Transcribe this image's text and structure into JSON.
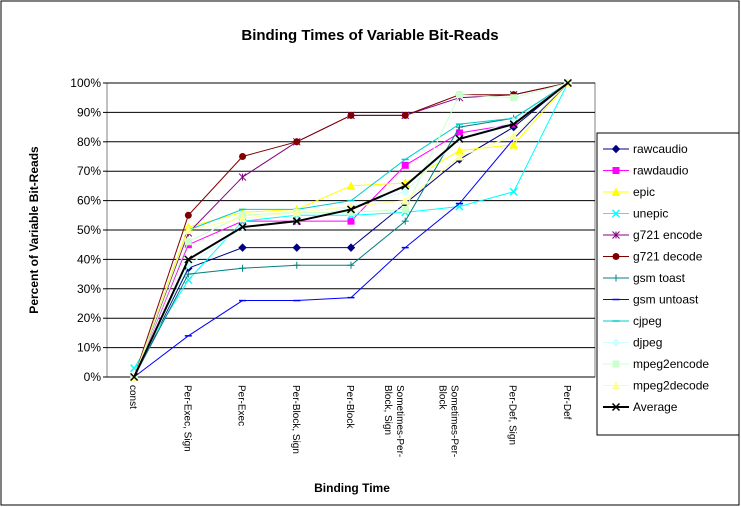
{
  "chart_data": {
    "type": "line",
    "title": "Binding Times of Variable Bit-Reads",
    "x_label": "Binding Time",
    "y_label": "Percent of Variable Bit-Reads",
    "categories": [
      "const",
      "Per-Exec, Sign",
      "Per-Exec",
      "Per-Block, Sign",
      "Per-Block",
      "Sometimes-Per-Block, Sign",
      "Sometimes-Per-Block",
      "Per-Def, Sign",
      "Per-Def"
    ],
    "ylim": [
      0,
      100
    ],
    "yticks": [
      {
        "value": 0,
        "label": "0%"
      },
      {
        "value": 10,
        "label": "10%"
      },
      {
        "value": 20,
        "label": "20%"
      },
      {
        "value": 30,
        "label": "30%"
      },
      {
        "value": 40,
        "label": "40%"
      },
      {
        "value": 50,
        "label": "50%"
      },
      {
        "value": 60,
        "label": "60%"
      },
      {
        "value": 70,
        "label": "70%"
      },
      {
        "value": 80,
        "label": "80%"
      },
      {
        "value": 90,
        "label": "90%"
      },
      {
        "value": 100,
        "label": "100%"
      }
    ],
    "grid": true,
    "legend": "right",
    "series": [
      {
        "name": "rawcaudio",
        "color": "#000080",
        "marker": "diamond",
        "values": [
          0,
          37,
          44,
          44,
          44,
          59,
          74,
          85,
          100
        ]
      },
      {
        "name": "rawdaudio",
        "color": "#ff00ff",
        "marker": "square",
        "values": [
          0,
          45,
          53,
          53,
          53,
          72,
          83,
          86,
          100
        ]
      },
      {
        "name": "epic",
        "color": "#ffff00",
        "marker": "triangle",
        "values": [
          0,
          51,
          56,
          57,
          65,
          66,
          77,
          79,
          100
        ]
      },
      {
        "name": "unepic",
        "color": "#00ffff",
        "marker": "x",
        "values": [
          3,
          33,
          53,
          55,
          55,
          56,
          58,
          63,
          100
        ]
      },
      {
        "name": "g721 encode",
        "color": "#800080",
        "marker": "star",
        "values": [
          0,
          49,
          68,
          80,
          89,
          89,
          95,
          96,
          100
        ]
      },
      {
        "name": "g721 decode",
        "color": "#800000",
        "marker": "circle",
        "values": [
          0,
          55,
          75,
          80,
          89,
          89,
          96,
          96,
          100
        ]
      },
      {
        "name": "gsm toast",
        "color": "#008080",
        "marker": "plus",
        "values": [
          0,
          35,
          37,
          38,
          38,
          53,
          85,
          88,
          100
        ]
      },
      {
        "name": "gsm untoast",
        "color": "#0000ff",
        "marker": "dash",
        "values": [
          0,
          14,
          26,
          26,
          27,
          44,
          59,
          81,
          100
        ]
      },
      {
        "name": "cjpeg",
        "color": "#00cccc",
        "marker": "dash",
        "values": [
          0,
          50,
          57,
          57,
          60,
          74,
          86,
          88,
          100
        ]
      },
      {
        "name": "djpeg",
        "color": "#ccffff",
        "marker": "diamond",
        "values": [
          0,
          38,
          51,
          53,
          58,
          63,
          81,
          87,
          100
        ]
      },
      {
        "name": "mpeg2encode",
        "color": "#ccffcc",
        "marker": "square",
        "values": [
          0,
          46,
          55,
          56,
          56,
          57,
          96,
          95,
          100
        ]
      },
      {
        "name": "mpeg2decode",
        "color": "#ffff99",
        "marker": "triangle",
        "values": [
          0,
          50,
          54,
          56,
          58,
          60,
          75,
          82,
          100
        ]
      },
      {
        "name": "Average",
        "color": "#000000",
        "marker": "x",
        "width": 2,
        "values": [
          0,
          40,
          51,
          53,
          57,
          65,
          81,
          86,
          100
        ]
      }
    ]
  }
}
